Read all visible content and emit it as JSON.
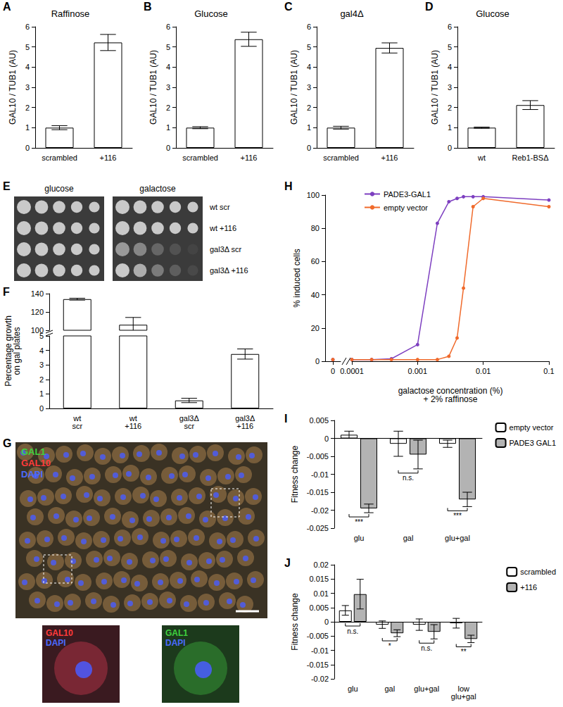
{
  "chart_data": [
    {
      "label": "A",
      "type": "bar",
      "title": "Raffinose",
      "y_label": "GAL10 / TUB1 (AU)",
      "categories": [
        "scrambled",
        "+116"
      ],
      "values": [
        1.0,
        5.22
      ],
      "errors": [
        0.1,
        0.4
      ],
      "color": "#ffffff",
      "ylim": [
        0,
        6
      ],
      "yticks": [
        0,
        1,
        2,
        3,
        4,
        5,
        6
      ]
    },
    {
      "label": "B",
      "type": "bar",
      "title": "Glucose",
      "y_label": "GAL10 / TUB1 (AU)",
      "categories": [
        "scrambled",
        "+116"
      ],
      "values": [
        1.0,
        5.38
      ],
      "errors": [
        0.05,
        0.35
      ],
      "color": "#ffffff",
      "ylim": [
        0,
        6
      ],
      "yticks": [
        0,
        1,
        2,
        3,
        4,
        5,
        6
      ]
    },
    {
      "label": "C",
      "type": "bar",
      "title": "gal4Δ",
      "y_label": "GAL10 / TUB1 (AU)",
      "categories": [
        "scrambled",
        "+116"
      ],
      "values": [
        1.0,
        4.95
      ],
      "errors": [
        0.07,
        0.25
      ],
      "color": "#ffffff",
      "ylim": [
        0,
        6
      ],
      "yticks": [
        0,
        1,
        2,
        3,
        4,
        5,
        6
      ]
    },
    {
      "label": "D",
      "type": "bar",
      "title": "Glucose",
      "y_label": "GAL10 / TUB1 (AU)",
      "categories": [
        "wt",
        "Reb1-BSΔ"
      ],
      "values": [
        1.0,
        2.12
      ],
      "errors": [
        0.03,
        0.22
      ],
      "color": "#ffffff",
      "ylim": [
        0,
        6
      ],
      "yticks": [
        0,
        1,
        2,
        3,
        4,
        5,
        6
      ]
    },
    {
      "label": "F",
      "type": "bar",
      "y_label": "Percentage growth\non gal plates",
      "categories": [
        "wt scr",
        "wt +116",
        "gal3Δ scr",
        "gal3Δ +116"
      ],
      "values": [
        134,
        106,
        0.55,
        3.75
      ],
      "errors": [
        1,
        8,
        0.15,
        0.35
      ],
      "color": "#ffffff",
      "ylim": [
        0,
        140
      ],
      "y_break": [
        5,
        100
      ],
      "yticks": [
        0,
        1,
        2,
        3,
        4,
        5,
        100,
        120,
        140
      ]
    },
    {
      "label": "H",
      "type": "line",
      "x_label": "galactose concentration (%)\n+ 2% raffinose",
      "y_label": "% induced cells",
      "x": [
        0,
        0.0001,
        0.0002,
        0.0004,
        0.001,
        0.002,
        0.003,
        0.004,
        0.005,
        0.007,
        0.01,
        0.1
      ],
      "series": [
        {
          "name": "PADE3-GAL1",
          "color": "#7d3fc0",
          "values": [
            1,
            1,
            1,
            1.5,
            10,
            83,
            96,
            98,
            99,
            99,
            99,
            97
          ]
        },
        {
          "name": "empty vector",
          "color": "#f06a2b",
          "values": [
            1,
            1,
            1,
            1,
            1,
            1,
            3,
            14,
            44,
            93,
            98,
            93
          ]
        }
      ],
      "xlim": [
        0,
        0.1
      ],
      "x_break": [
        0,
        0.0001
      ],
      "xticks": [
        0,
        0.0001,
        0.001,
        0.01,
        0.1
      ],
      "ylim": [
        0,
        100
      ],
      "yticks": [
        0,
        20,
        40,
        60,
        80,
        100
      ],
      "log": "x",
      "legend": "upper left",
      "marker": "circle"
    },
    {
      "label": "I",
      "type": "bar",
      "y_label": "Fitness change",
      "categories": [
        "glu",
        "gal",
        "glu+gal"
      ],
      "series": [
        {
          "name": "empty vector",
          "color": "#ffffff",
          "values": [
            0.001,
            -0.0015,
            -0.0015
          ],
          "errors": [
            0.001,
            0.0035,
            0.001
          ]
        },
        {
          "name": "PADE3 GAL1",
          "color": "#b3b3b3",
          "values": [
            -0.0195,
            -0.0045,
            -0.017
          ],
          "errors": [
            0.0012,
            0.004,
            0.002
          ]
        }
      ],
      "ylim": [
        -0.025,
        0.005
      ],
      "yticks": [
        -0.025,
        -0.02,
        -0.015,
        -0.01,
        -0.005,
        0,
        0.005
      ],
      "legend": "upper right",
      "annotations": [
        {
          "category": "glu",
          "text": "***"
        },
        {
          "category": "gal",
          "text": "n.s."
        },
        {
          "category": "glu+gal",
          "text": "***"
        }
      ]
    },
    {
      "label": "J",
      "type": "bar",
      "y_label": "Fitness change",
      "categories": [
        "glu",
        "gal",
        "glu+gal",
        "low glu+gal"
      ],
      "series": [
        {
          "name": "scrambled",
          "color": "#ffffff",
          "values": [
            0.004,
            -0.001,
            -0.001,
            -0.0005
          ],
          "errors": [
            0.0017,
            0.0013,
            0.002,
            0.0017
          ]
        },
        {
          "name": "+116",
          "color": "#b3b3b3",
          "values": [
            0.0097,
            -0.004,
            -0.0035,
            -0.006
          ],
          "errors": [
            0.0052,
            0.0012,
            0.0025,
            0.0013
          ]
        }
      ],
      "ylim": [
        -0.02,
        0.02
      ],
      "yticks": [
        -0.02,
        -0.015,
        -0.01,
        -0.005,
        0,
        0.005,
        0.01,
        0.015,
        0.02
      ],
      "legend": "upper right",
      "annotations": [
        {
          "category": "glu",
          "text": "n.s."
        },
        {
          "category": "gal",
          "text": "*"
        },
        {
          "category": "glu+gal",
          "text": "n.s."
        },
        {
          "category": "low glu+gal",
          "text": "**"
        }
      ]
    }
  ],
  "spot_assay": {
    "label": "E",
    "conditions": [
      "glucose",
      "galactose"
    ],
    "strains": [
      "wt scr",
      "wt +116",
      "gal3Δ scr",
      "gal3Δ +116"
    ]
  },
  "microscopy": {
    "label": "G",
    "channels": [
      {
        "name": "GAL1",
        "color": "#3fd13f"
      },
      {
        "name": "GAL10",
        "color": "#ff3b3b"
      },
      {
        "name": "DAPI",
        "color": "#4a6bff"
      }
    ],
    "insets": [
      [
        "GAL10",
        "DAPI"
      ],
      [
        "GAL1",
        "DAPI"
      ]
    ]
  }
}
